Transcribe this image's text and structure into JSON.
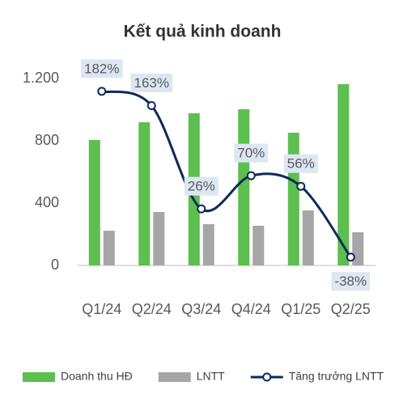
{
  "chart_data": {
    "type": "bar_line",
    "title": "Kết quả kinh doanh",
    "categories": [
      "Q1/24",
      "Q2/24",
      "Q3/24",
      "Q4/24",
      "Q1/25",
      "Q2/25"
    ],
    "series": [
      {
        "name": "Doanh thu HĐ",
        "color": "#5cbf4f",
        "type": "bar",
        "values": [
          805,
          919,
          977,
          1003,
          852,
          1164
        ]
      },
      {
        "name": "LNTT",
        "color": "#a6a6a6",
        "type": "bar",
        "values": [
          223,
          343,
          265,
          255,
          353,
          213
        ]
      },
      {
        "name": "Tăng trưởng LNTT",
        "color": "#0d2a5c",
        "type": "line",
        "axis": "y2",
        "values": [
          182,
          163,
          26,
          70,
          56,
          -38
        ],
        "value_labels": [
          "182%",
          "163%",
          "26%",
          "70%",
          "56%",
          "-38%"
        ]
      }
    ],
    "ylim": [
      0,
      1200
    ],
    "yticks": [
      0,
      400,
      800,
      {
        "value": 1200,
        "label": "1.200"
      }
    ],
    "y2lim": [
      -49,
      199
    ],
    "legend": "bottom"
  }
}
